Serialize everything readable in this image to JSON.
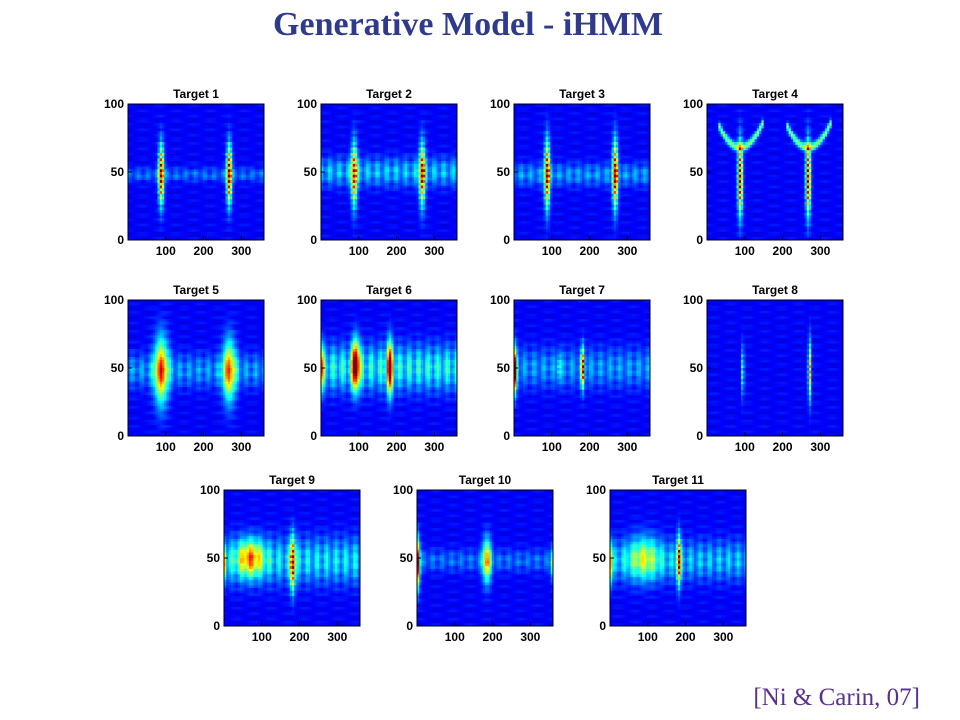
{
  "slide": {
    "title": "Generative Model - iHMM",
    "citation": "[Ni & Carin, 07]"
  },
  "colors": {
    "title": "#2e3a8c",
    "citation": "#5a2f8e",
    "background_map": "#00008f"
  },
  "chart_data": [
    {
      "type": "heatmap",
      "title": "Target 1",
      "xticks": [
        "100",
        "200",
        "300"
      ],
      "yticks": [
        "0",
        "50",
        "100"
      ],
      "xlim": [
        0,
        360
      ],
      "ylim": [
        0,
        100
      ],
      "colormap": "jet",
      "features": [
        {
          "kind": "streak",
          "x": 88,
          "y": 48,
          "hw": 10,
          "hh": 26,
          "intensity": 1.0
        },
        {
          "kind": "streak",
          "x": 268,
          "y": 48,
          "hw": 10,
          "hh": 26,
          "intensity": 1.0
        },
        {
          "kind": "band",
          "y": 48,
          "hh": 5,
          "intensity": 0.15
        }
      ]
    },
    {
      "type": "heatmap",
      "title": "Target 2",
      "xticks": [
        "100",
        "200",
        "300"
      ],
      "yticks": [
        "0",
        "50",
        "100"
      ],
      "xlim": [
        0,
        360
      ],
      "ylim": [
        0,
        100
      ],
      "colormap": "jet",
      "features": [
        {
          "kind": "streak",
          "x": 88,
          "y": 48,
          "hw": 11,
          "hh": 28,
          "intensity": 0.85
        },
        {
          "kind": "streak",
          "x": 268,
          "y": 48,
          "hw": 11,
          "hh": 28,
          "intensity": 0.85
        },
        {
          "kind": "band",
          "y": 50,
          "hh": 10,
          "intensity": 0.25
        }
      ]
    },
    {
      "type": "heatmap",
      "title": "Target 3",
      "xticks": [
        "100",
        "200",
        "300"
      ],
      "yticks": [
        "0",
        "50",
        "100"
      ],
      "xlim": [
        0,
        360
      ],
      "ylim": [
        0,
        100
      ],
      "colormap": "jet",
      "features": [
        {
          "kind": "streak",
          "x": 88,
          "y": 48,
          "hw": 10,
          "hh": 30,
          "intensity": 0.95
        },
        {
          "kind": "streak",
          "x": 268,
          "y": 48,
          "hw": 10,
          "hh": 30,
          "intensity": 0.95
        },
        {
          "kind": "band",
          "y": 48,
          "hh": 8,
          "intensity": 0.2
        }
      ]
    },
    {
      "type": "heatmap",
      "title": "Target 4",
      "xticks": [
        "100",
        "200",
        "300"
      ],
      "yticks": [
        "0",
        "50",
        "100"
      ],
      "xlim": [
        0,
        360
      ],
      "ylim": [
        0,
        100
      ],
      "colormap": "jet",
      "features": [
        {
          "kind": "streak",
          "x": 88,
          "y": 45,
          "hw": 9,
          "hh": 32,
          "intensity": 1.0
        },
        {
          "kind": "streak",
          "x": 268,
          "y": 45,
          "hw": 9,
          "hh": 32,
          "intensity": 1.0
        },
        {
          "kind": "arc",
          "x": 88,
          "y": 68,
          "hw": 60,
          "hh": 18,
          "intensity": 0.4
        },
        {
          "kind": "arc",
          "x": 268,
          "y": 68,
          "hw": 60,
          "hh": 18,
          "intensity": 0.4
        }
      ]
    },
    {
      "type": "heatmap",
      "title": "Target 5",
      "xticks": [
        "100",
        "200",
        "300"
      ],
      "yticks": [
        "0",
        "50",
        "100"
      ],
      "xlim": [
        0,
        360
      ],
      "ylim": [
        0,
        100
      ],
      "colormap": "jet",
      "features": [
        {
          "kind": "blob",
          "x": 88,
          "y": 48,
          "hw": 26,
          "hh": 30,
          "intensity": 0.6
        },
        {
          "kind": "blob",
          "x": 268,
          "y": 48,
          "hw": 24,
          "hh": 28,
          "intensity": 0.55
        },
        {
          "kind": "band",
          "y": 48,
          "hh": 12,
          "intensity": 0.2
        }
      ]
    },
    {
      "type": "heatmap",
      "title": "Target 6",
      "xticks": [
        "100",
        "200",
        "300"
      ],
      "yticks": [
        "0",
        "50",
        "100"
      ],
      "xlim": [
        0,
        360
      ],
      "ylim": [
        0,
        100
      ],
      "colormap": "jet",
      "features": [
        {
          "kind": "blob",
          "x": 92,
          "y": 52,
          "hw": 14,
          "hh": 22,
          "intensity": 0.85
        },
        {
          "kind": "blob",
          "x": 182,
          "y": 50,
          "hw": 12,
          "hh": 24,
          "intensity": 0.7
        },
        {
          "kind": "band",
          "y": 50,
          "hh": 16,
          "intensity": 0.35
        },
        {
          "kind": "edge",
          "x": 0,
          "y": 50,
          "hw": 10,
          "hh": 20,
          "intensity": 0.5
        }
      ]
    },
    {
      "type": "heatmap",
      "title": "Target 7",
      "xticks": [
        "100",
        "200",
        "300"
      ],
      "yticks": [
        "0",
        "50",
        "100"
      ],
      "xlim": [
        0,
        360
      ],
      "ylim": [
        0,
        100
      ],
      "colormap": "jet",
      "features": [
        {
          "kind": "edge",
          "x": 0,
          "y": 48,
          "hw": 10,
          "hh": 20,
          "intensity": 0.95
        },
        {
          "kind": "streak",
          "x": 182,
          "y": 50,
          "hw": 7,
          "hh": 18,
          "intensity": 0.8
        },
        {
          "kind": "streak",
          "x": 120,
          "y": 50,
          "hw": 5,
          "hh": 14,
          "intensity": 0.35
        },
        {
          "kind": "band",
          "y": 50,
          "hh": 14,
          "intensity": 0.2
        }
      ]
    },
    {
      "type": "heatmap",
      "title": "Target 8",
      "xticks": [
        "100",
        "200",
        "300"
      ],
      "yticks": [
        "0",
        "50",
        "100"
      ],
      "xlim": [
        0,
        360
      ],
      "ylim": [
        0,
        100
      ],
      "colormap": "jet",
      "features": [
        {
          "kind": "streak",
          "x": 95,
          "y": 48,
          "hw": 5,
          "hh": 22,
          "intensity": 0.45
        },
        {
          "kind": "streak",
          "x": 272,
          "y": 48,
          "hw": 6,
          "hh": 26,
          "intensity": 0.7
        }
      ]
    },
    {
      "type": "heatmap",
      "title": "Target 9",
      "xticks": [
        "100",
        "200",
        "300"
      ],
      "yticks": [
        "0",
        "50",
        "100"
      ],
      "xlim": [
        0,
        360
      ],
      "ylim": [
        0,
        100
      ],
      "colormap": "jet",
      "features": [
        {
          "kind": "streak",
          "x": 182,
          "y": 46,
          "hw": 9,
          "hh": 24,
          "intensity": 0.9
        },
        {
          "kind": "blob",
          "x": 70,
          "y": 50,
          "hw": 50,
          "hh": 16,
          "intensity": 0.45
        },
        {
          "kind": "band",
          "y": 48,
          "hh": 16,
          "intensity": 0.3
        },
        {
          "kind": "edge",
          "x": 0,
          "y": 46,
          "hw": 8,
          "hh": 14,
          "intensity": 0.5
        }
      ]
    },
    {
      "type": "heatmap",
      "title": "Target 10",
      "xticks": [
        "100",
        "200",
        "300"
      ],
      "yticks": [
        "0",
        "50",
        "100"
      ],
      "xlim": [
        0,
        360
      ],
      "ylim": [
        0,
        100
      ],
      "colormap": "jet",
      "features": [
        {
          "kind": "edge",
          "x": 0,
          "y": 46,
          "hw": 10,
          "hh": 22,
          "intensity": 0.95
        },
        {
          "kind": "blob",
          "x": 185,
          "y": 48,
          "hw": 16,
          "hh": 20,
          "intensity": 0.55
        },
        {
          "kind": "band",
          "y": 48,
          "hh": 8,
          "intensity": 0.15
        },
        {
          "kind": "edge",
          "x": 360,
          "y": 46,
          "hw": 8,
          "hh": 14,
          "intensity": 0.4
        }
      ]
    },
    {
      "type": "heatmap",
      "title": "Target 11",
      "xticks": [
        "100",
        "200",
        "300"
      ],
      "yticks": [
        "0",
        "50",
        "100"
      ],
      "xlim": [
        0,
        360
      ],
      "ylim": [
        0,
        100
      ],
      "colormap": "jet",
      "features": [
        {
          "kind": "streak",
          "x": 182,
          "y": 48,
          "hw": 8,
          "hh": 22,
          "intensity": 0.85
        },
        {
          "kind": "edge",
          "x": 0,
          "y": 46,
          "hw": 8,
          "hh": 18,
          "intensity": 0.6
        },
        {
          "kind": "blob",
          "x": 90,
          "y": 50,
          "hw": 60,
          "hh": 20,
          "intensity": 0.3
        },
        {
          "kind": "band",
          "y": 48,
          "hh": 14,
          "intensity": 0.25
        }
      ]
    }
  ]
}
